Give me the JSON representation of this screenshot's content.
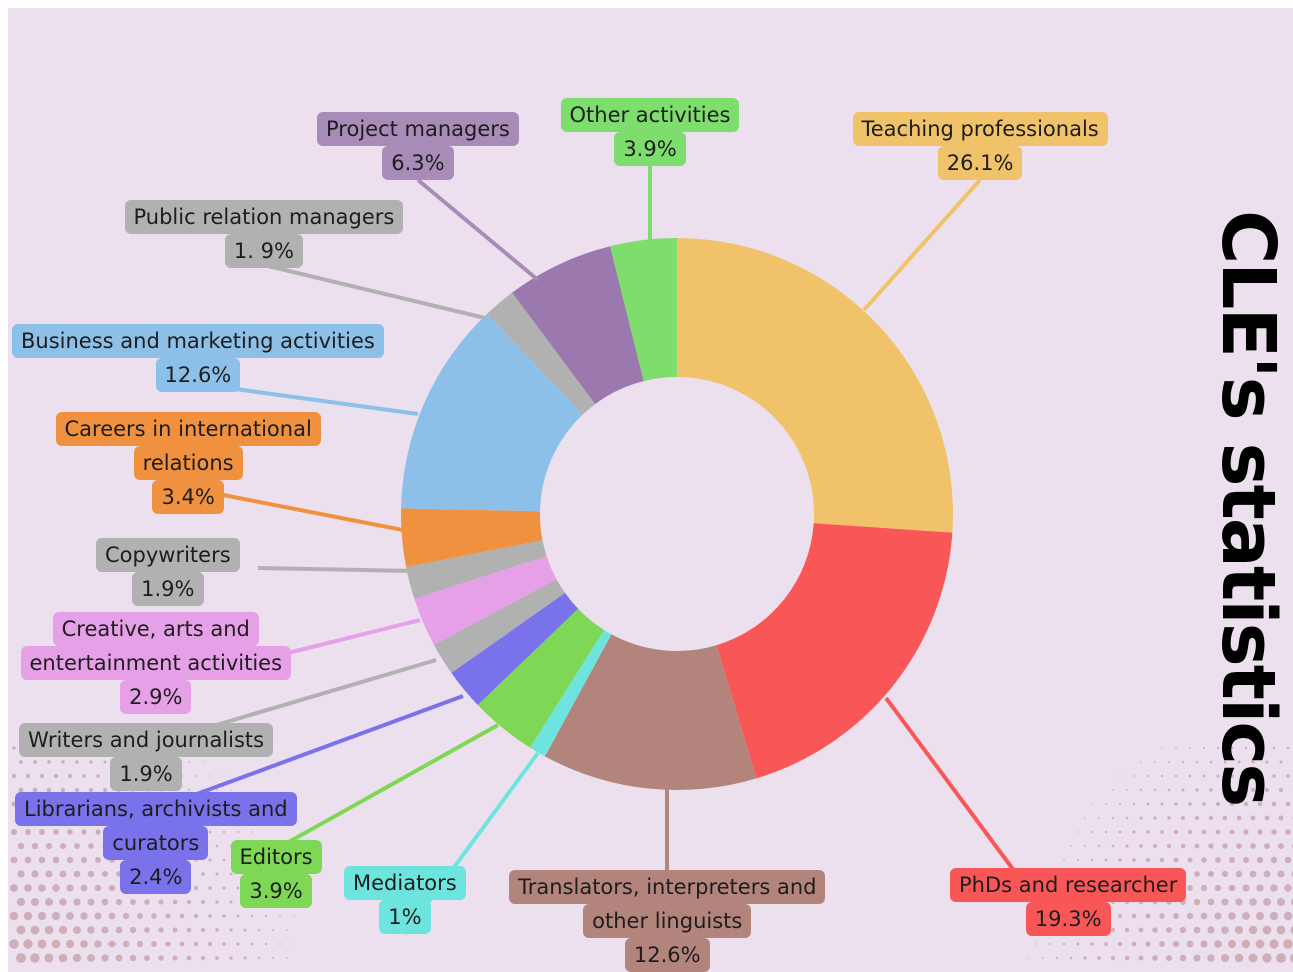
{
  "colors": {
    "background": "#ece0ee",
    "dots": "#c9a5ad"
  },
  "chart_data": {
    "type": "pie",
    "variant": "donut",
    "title": "CLE's statistics",
    "unit": "%",
    "slices": [
      {
        "label": "Teaching professionals",
        "value": 26.1,
        "value_label": "26.1%",
        "color": "#f0c36b",
        "label_color": "#f0c36b"
      },
      {
        "label": "PhDs and researcher",
        "value": 19.3,
        "value_label": "19.3%",
        "color": "#f95757",
        "label_color": "#f95757"
      },
      {
        "label": "Translators, interpreters and other linguists",
        "value": 12.6,
        "value_label": "12.6%",
        "color": "#b3847c",
        "label_color": "#b3847c"
      },
      {
        "label": "Mediators",
        "value": 1,
        "value_label": "1%",
        "color": "#6ee4df",
        "label_color": "#6ee4df"
      },
      {
        "label": "Editors",
        "value": 3.9,
        "value_label": "3.9%",
        "color": "#7ed856",
        "label_color": "#7ed856"
      },
      {
        "label": "Librarians, archivists and curators",
        "value": 2.4,
        "value_label": "2.4%",
        "color": "#7a72ea",
        "label_color": "#7a72ea"
      },
      {
        "label": "Writers and journalists",
        "value": 1.9,
        "value_label": "1.9%",
        "color": "#b1b1b1",
        "label_color": "#b1b1b1"
      },
      {
        "label": "Creative, arts and entertainment activities",
        "value": 2.9,
        "value_label": "2.9%",
        "color": "#e5a0e7",
        "label_color": "#e5a0e7"
      },
      {
        "label": "Copywriters",
        "value": 1.9,
        "value_label": "1.9%",
        "color": "#b1b1b1",
        "label_color": "#b1b1b1"
      },
      {
        "label": "Careers in international relations",
        "value": 3.4,
        "value_label": "3.4%",
        "color": "#f0913f",
        "label_color": "#f0913f"
      },
      {
        "label": "Business and marketing activities",
        "value": 12.6,
        "value_label": "12.6%",
        "color": "#8dc0e8",
        "label_color": "#8dc0e8"
      },
      {
        "label": "Public relation managers",
        "value": 1.9,
        "value_label": "1. 9%",
        "color": "#b1b1b1",
        "label_color": "#b1b1b1"
      },
      {
        "label": "Project managers",
        "value": 6.3,
        "value_label": "6.3%",
        "color": "#9b79ae",
        "label_color": "#a98bb8"
      },
      {
        "label": "Other activities",
        "value": 3.9,
        "value_label": "3.9%",
        "color": "#7ddd6d",
        "label_color": "#7ddd6d"
      }
    ]
  }
}
